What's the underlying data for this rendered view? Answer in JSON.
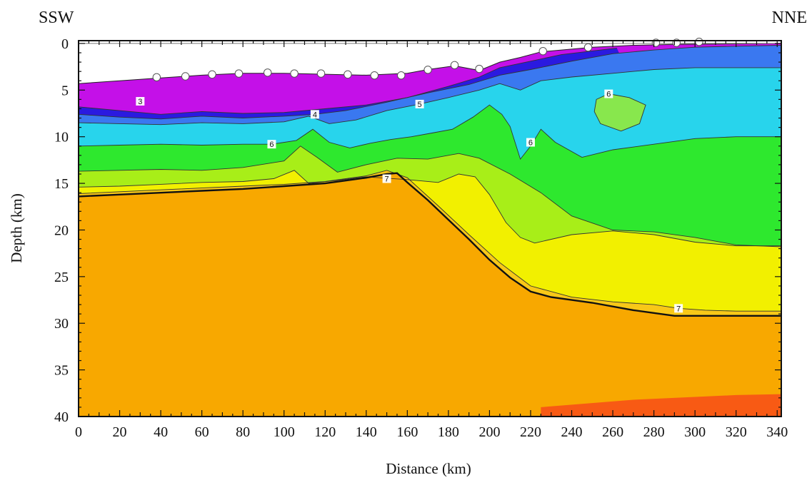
{
  "chart_data": {
    "type": "heatmap",
    "title": "",
    "direction_labels": {
      "left": "SSW",
      "right": "NNE"
    },
    "xlabel": "Distance (km)",
    "ylabel": "Depth (km)",
    "xlim": [
      0,
      342
    ],
    "ylim": [
      40,
      -0.3
    ],
    "y_inverted": true,
    "grid": false,
    "x_ticks": [
      0,
      20,
      40,
      60,
      80,
      100,
      120,
      140,
      160,
      180,
      200,
      220,
      240,
      260,
      280,
      300,
      320,
      340
    ],
    "x_tick_labels": [
      "0",
      "20",
      "40",
      "60",
      "80",
      "100",
      "120",
      "140",
      "160",
      "180",
      "200",
      "220",
      "240",
      "260",
      "280",
      "300",
      "320",
      "340"
    ],
    "y_ticks": [
      0,
      5,
      10,
      15,
      20,
      25,
      30,
      35,
      40
    ],
    "y_tick_labels": [
      "0",
      "5",
      "10",
      "15",
      "20",
      "25",
      "30",
      "35",
      "40"
    ],
    "colors": {
      "v3": "#c410e8",
      "v4": "#2a1ae0",
      "v45": "#3a78f0",
      "v5": "#28d4ec",
      "v55": "#22e6b0",
      "v6": "#2ee82e",
      "v65": "#a8ee18",
      "v68": "#f2f000",
      "v7": "#f8c818",
      "mantle": "#f8a800",
      "deep": "#f85a14",
      "contour": "#333333",
      "moho": "#111111"
    },
    "surface": [
      [
        0,
        4.3
      ],
      [
        20,
        4.0
      ],
      [
        40,
        3.7
      ],
      [
        60,
        3.4
      ],
      [
        80,
        3.2
      ],
      [
        100,
        3.2
      ],
      [
        120,
        3.3
      ],
      [
        140,
        3.4
      ],
      [
        160,
        3.2
      ],
      [
        170,
        2.8
      ],
      [
        183,
        2.4
      ],
      [
        195,
        2.9
      ],
      [
        205,
        2.0
      ],
      [
        215,
        1.5
      ],
      [
        225,
        0.9
      ],
      [
        235,
        0.7
      ],
      [
        250,
        0.4
      ],
      [
        270,
        0.2
      ],
      [
        290,
        0.1
      ],
      [
        342,
        0.0
      ]
    ],
    "stations": [
      [
        38,
        3.7
      ],
      [
        52,
        3.6
      ],
      [
        65,
        3.4
      ],
      [
        78,
        3.3
      ],
      [
        92,
        3.2
      ],
      [
        105,
        3.3
      ],
      [
        118,
        3.3
      ],
      [
        131,
        3.4
      ],
      [
        144,
        3.5
      ],
      [
        157,
        3.5
      ],
      [
        170,
        2.9
      ],
      [
        183,
        2.4
      ],
      [
        195,
        2.8
      ],
      [
        226,
        0.9
      ],
      [
        248,
        0.5
      ],
      [
        281,
        0.0
      ],
      [
        291,
        0.0
      ],
      [
        302,
        -0.1
      ]
    ],
    "moho": [
      [
        0,
        16.4
      ],
      [
        20,
        16.2
      ],
      [
        40,
        16.0
      ],
      [
        60,
        15.8
      ],
      [
        80,
        15.6
      ],
      [
        100,
        15.3
      ],
      [
        120,
        15.0
      ],
      [
        140,
        14.4
      ],
      [
        150,
        14.0
      ],
      [
        155,
        13.9
      ],
      [
        160,
        14.9
      ],
      [
        170,
        16.8
      ],
      [
        180,
        18.9
      ],
      [
        190,
        21.0
      ],
      [
        200,
        23.2
      ],
      [
        210,
        25.1
      ],
      [
        220,
        26.6
      ],
      [
        230,
        27.2
      ],
      [
        250,
        27.8
      ],
      [
        270,
        28.6
      ],
      [
        290,
        29.2
      ],
      [
        342,
        29.2
      ]
    ],
    "velocity_contours": [
      {
        "label": "3",
        "label_at": [
          30,
          6.2
        ],
        "points": [
          [
            0,
            6.8
          ],
          [
            20,
            7.2
          ],
          [
            40,
            7.6
          ],
          [
            60,
            7.3
          ],
          [
            80,
            7.5
          ],
          [
            100,
            7.4
          ],
          [
            120,
            7.0
          ],
          [
            140,
            6.6
          ],
          [
            160,
            5.8
          ],
          [
            180,
            4.6
          ],
          [
            195,
            3.6
          ],
          [
            205,
            2.6
          ],
          [
            220,
            1.9
          ],
          [
            235,
            1.2
          ],
          [
            250,
            0.8
          ],
          [
            262,
            0.5
          ]
        ]
      },
      {
        "label": "4",
        "label_at": [
          115,
          7.6
        ],
        "points": [
          [
            0,
            7.6
          ],
          [
            20,
            7.9
          ],
          [
            40,
            8.1
          ],
          [
            60,
            7.8
          ],
          [
            80,
            8.0
          ],
          [
            100,
            7.8
          ],
          [
            115,
            7.6
          ],
          [
            130,
            7.2
          ],
          [
            150,
            6.3
          ],
          [
            170,
            5.3
          ],
          [
            190,
            4.4
          ],
          [
            205,
            3.4
          ],
          [
            220,
            2.8
          ],
          [
            240,
            1.9
          ],
          [
            260,
            1.1
          ],
          [
            280,
            0.7
          ],
          [
            300,
            0.4
          ],
          [
            320,
            0.3
          ],
          [
            342,
            0.2
          ]
        ]
      },
      {
        "label": "5",
        "label_at": [
          166,
          6.5
        ],
        "points": [
          [
            0,
            8.5
          ],
          [
            20,
            8.6
          ],
          [
            40,
            8.7
          ],
          [
            60,
            8.5
          ],
          [
            80,
            8.6
          ],
          [
            100,
            8.4
          ],
          [
            112,
            7.8
          ],
          [
            122,
            8.6
          ],
          [
            135,
            8.2
          ],
          [
            150,
            7.2
          ],
          [
            166,
            6.5
          ],
          [
            180,
            5.8
          ],
          [
            195,
            5.0
          ],
          [
            205,
            4.3
          ],
          [
            215,
            5.0
          ],
          [
            225,
            4.0
          ],
          [
            240,
            3.6
          ],
          [
            260,
            3.2
          ],
          [
            280,
            2.8
          ],
          [
            300,
            2.6
          ],
          [
            320,
            2.6
          ],
          [
            342,
            2.6
          ]
        ]
      },
      {
        "label": "6",
        "label_at": [
          94,
          10.8
        ],
        "points": [
          [
            0,
            11.0
          ],
          [
            20,
            10.9
          ],
          [
            40,
            10.8
          ],
          [
            60,
            10.9
          ],
          [
            80,
            10.8
          ],
          [
            94,
            10.8
          ],
          [
            106,
            10.4
          ],
          [
            114,
            9.2
          ],
          [
            122,
            10.6
          ],
          [
            132,
            11.2
          ],
          [
            142,
            10.7
          ],
          [
            152,
            10.3
          ],
          [
            162,
            10.0
          ],
          [
            172,
            9.6
          ],
          [
            182,
            9.2
          ],
          [
            192,
            7.9
          ],
          [
            200,
            6.6
          ],
          [
            206,
            7.6
          ],
          [
            210,
            8.9
          ],
          [
            215,
            12.4
          ],
          [
            220,
            11.0
          ],
          [
            225,
            9.2
          ],
          [
            232,
            10.6
          ],
          [
            245,
            12.2
          ],
          [
            260,
            11.4
          ],
          [
            280,
            10.8
          ],
          [
            300,
            10.2
          ],
          [
            320,
            10.0
          ],
          [
            342,
            10.0
          ]
        ]
      },
      {
        "label": "6",
        "label_at": [
          258,
          5.4
        ],
        "points": [
          [
            252,
            6.0
          ],
          [
            258,
            5.4
          ],
          [
            268,
            5.8
          ],
          [
            276,
            6.6
          ],
          [
            273,
            8.6
          ],
          [
            264,
            9.4
          ],
          [
            254,
            8.6
          ],
          [
            251,
            7.3
          ],
          [
            252,
            6.0
          ]
        ]
      },
      {
        "label": "",
        "label_at": null,
        "points": [
          [
            0,
            13.7
          ],
          [
            20,
            13.6
          ],
          [
            40,
            13.5
          ],
          [
            60,
            13.6
          ],
          [
            80,
            13.3
          ],
          [
            100,
            12.6
          ],
          [
            108,
            11.0
          ],
          [
            116,
            12.2
          ],
          [
            126,
            13.8
          ],
          [
            140,
            13.0
          ],
          [
            155,
            12.3
          ],
          [
            170,
            12.4
          ],
          [
            185,
            11.8
          ],
          [
            195,
            12.3
          ],
          [
            210,
            14.0
          ],
          [
            225,
            16.0
          ],
          [
            240,
            18.5
          ],
          [
            260,
            20.0
          ],
          [
            280,
            20.2
          ],
          [
            300,
            20.8
          ],
          [
            320,
            21.6
          ],
          [
            342,
            21.8
          ]
        ]
      },
      {
        "label": "",
        "label_at": null,
        "points": [
          [
            0,
            15.4
          ],
          [
            20,
            15.3
          ],
          [
            40,
            15.1
          ],
          [
            60,
            14.9
          ],
          [
            80,
            14.8
          ],
          [
            95,
            14.5
          ],
          [
            105,
            13.6
          ],
          [
            112,
            15.0
          ],
          [
            125,
            14.7
          ],
          [
            140,
            14.3
          ],
          [
            160,
            14.6
          ],
          [
            175,
            14.9
          ],
          [
            185,
            14.0
          ],
          [
            193,
            14.3
          ],
          [
            200,
            16.2
          ],
          [
            208,
            19.2
          ],
          [
            215,
            20.8
          ],
          [
            222,
            21.4
          ],
          [
            240,
            20.5
          ],
          [
            260,
            20.1
          ],
          [
            280,
            20.5
          ],
          [
            300,
            21.3
          ],
          [
            320,
            21.7
          ],
          [
            342,
            21.7
          ]
        ]
      },
      {
        "label": "7",
        "label_at": [
          150,
          14.5
        ],
        "points": [
          [
            0,
            16.1
          ],
          [
            20,
            15.9
          ],
          [
            40,
            15.7
          ],
          [
            60,
            15.5
          ],
          [
            80,
            15.3
          ],
          [
            100,
            15.1
          ],
          [
            120,
            14.8
          ],
          [
            140,
            14.2
          ],
          [
            150,
            13.6
          ],
          [
            160,
            14.4
          ],
          [
            175,
            17.4
          ],
          [
            190,
            20.5
          ],
          [
            205,
            23.5
          ],
          [
            220,
            26.0
          ],
          [
            240,
            27.2
          ],
          [
            260,
            27.7
          ],
          [
            280,
            28.0
          ],
          [
            292,
            28.4
          ],
          [
            305,
            28.6
          ],
          [
            320,
            28.7
          ],
          [
            342,
            28.7
          ]
        ]
      }
    ],
    "annotations": [
      "3",
      "4",
      "5",
      "6",
      "6",
      "6",
      "7",
      "7"
    ]
  }
}
